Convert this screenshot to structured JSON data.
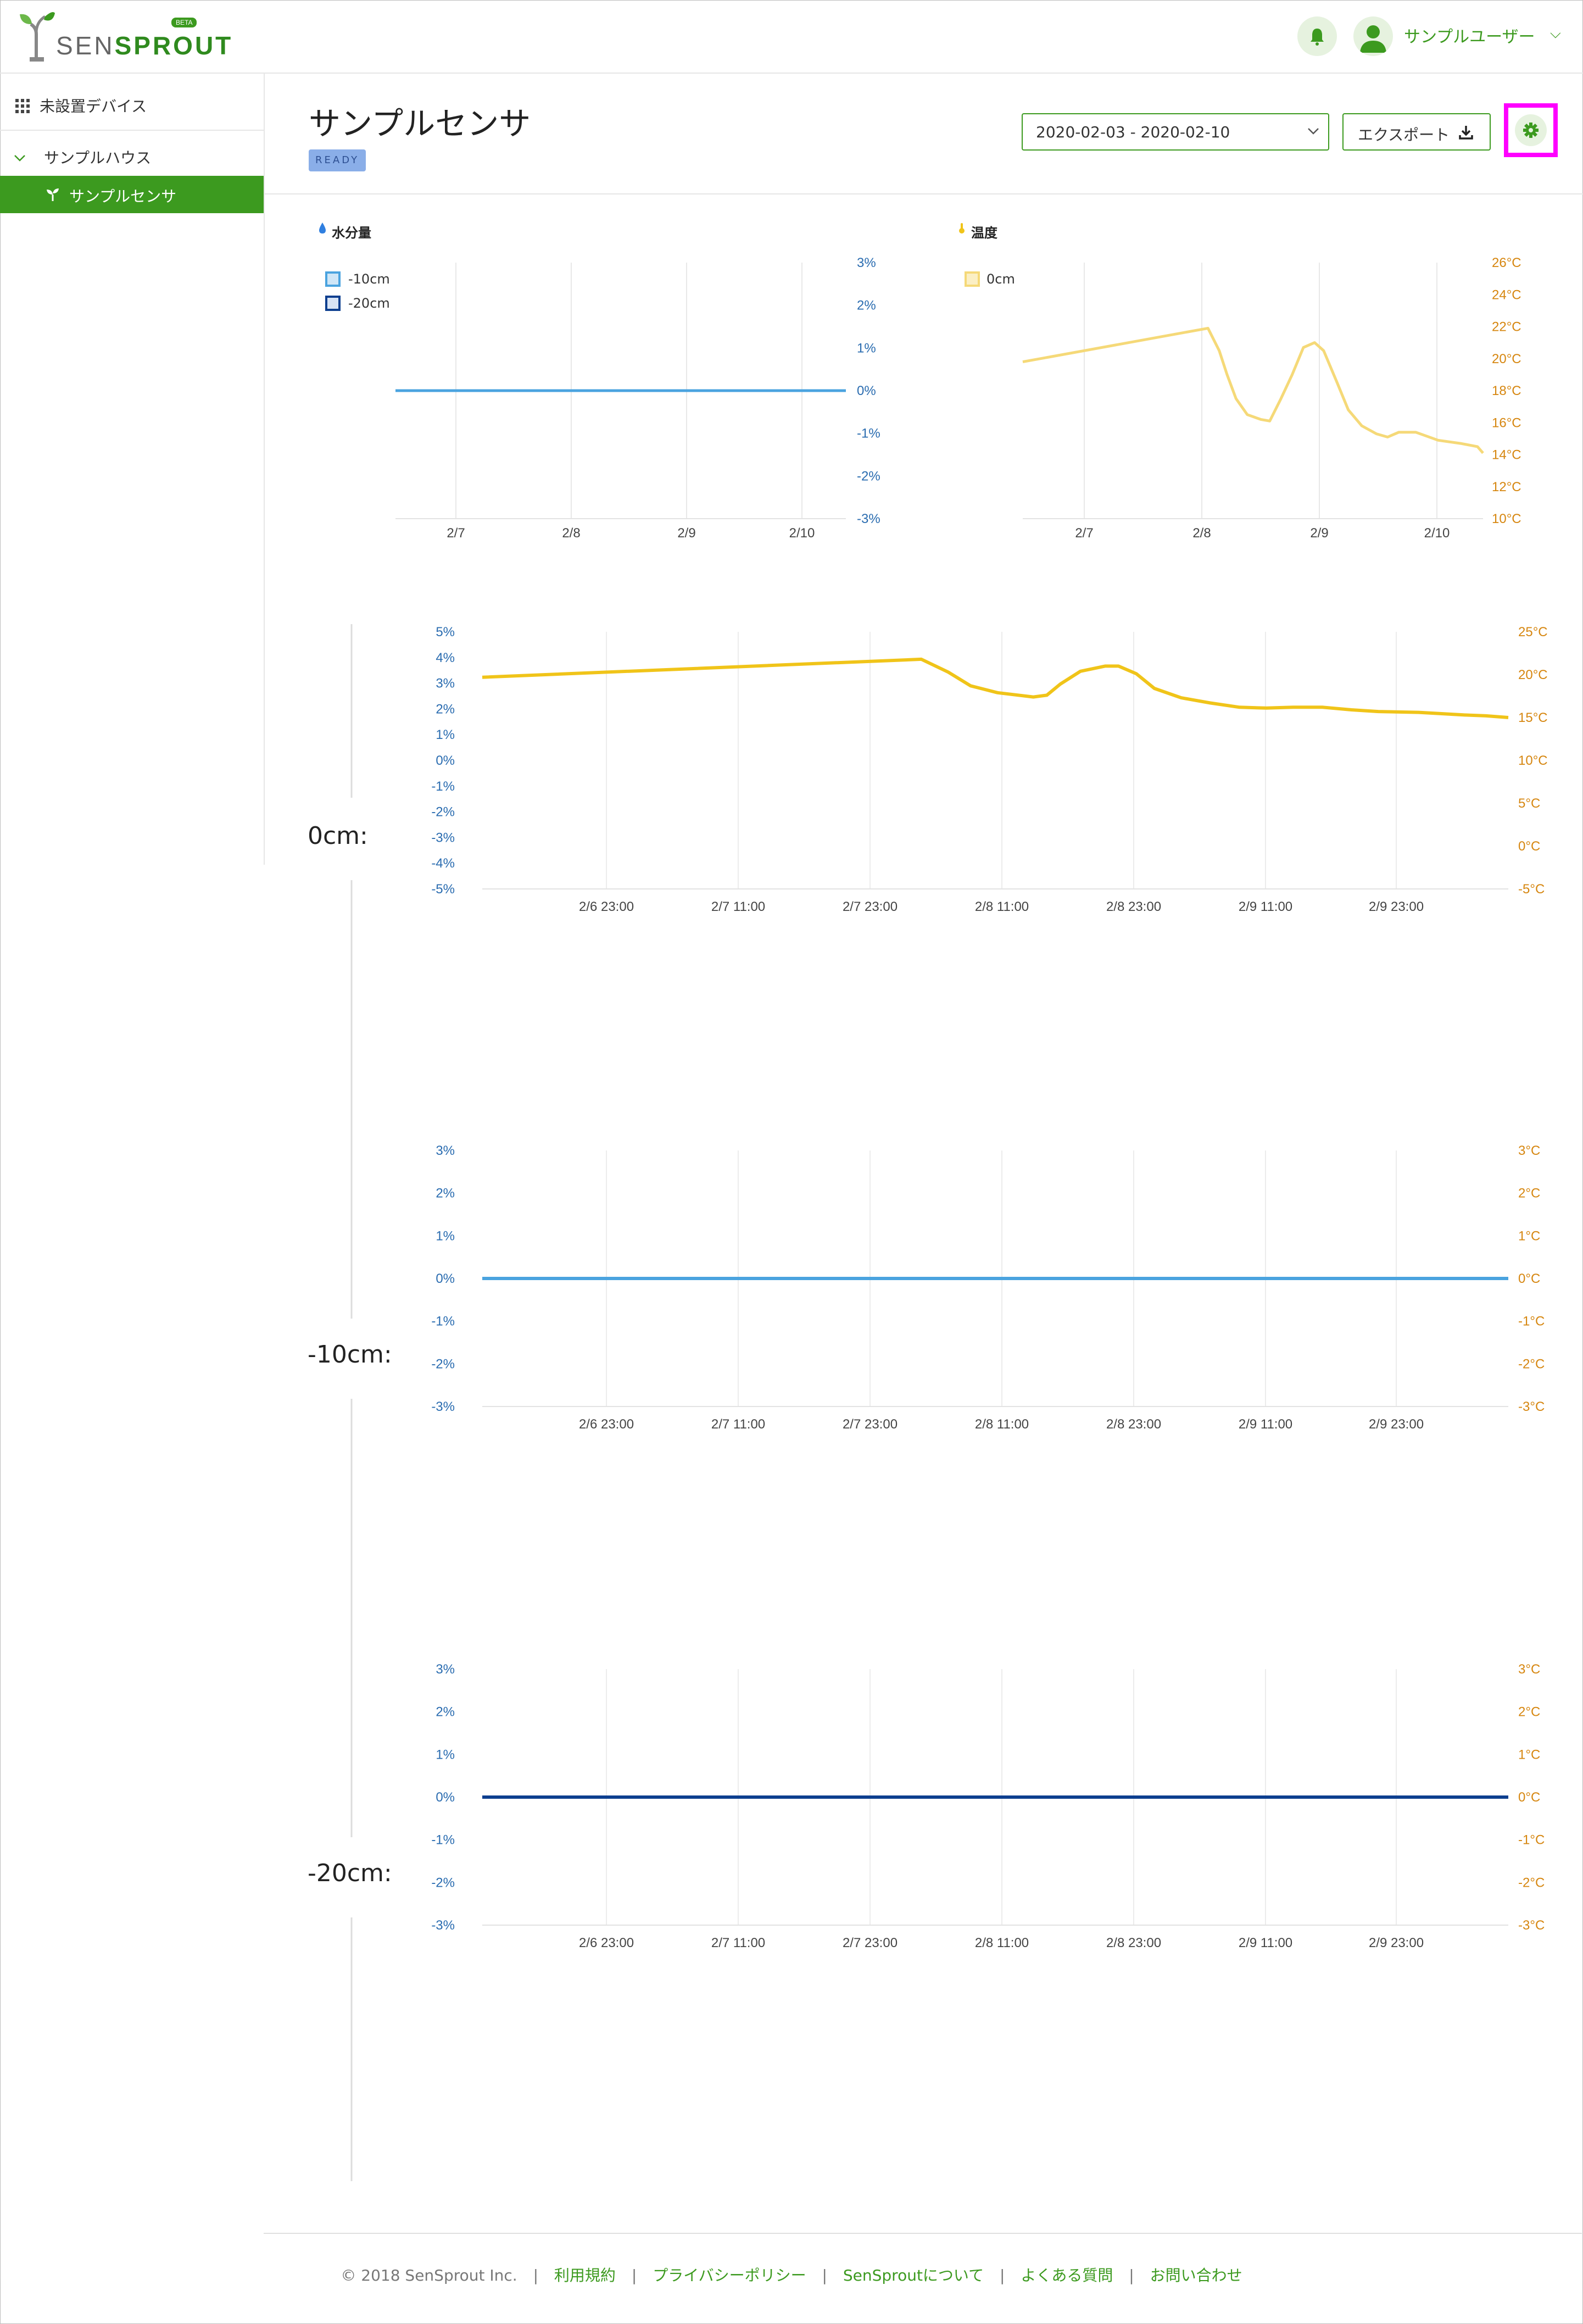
{
  "header": {
    "logo_text_left": "SEN",
    "logo_text_right": "SPROUT",
    "logo_badge": "BETA",
    "user_name": "サンプルユーザー",
    "user_chevron": "⌵",
    "icons": {
      "bell": "bell-icon",
      "avatar": "user-icon",
      "leaf": "leaf-icon"
    }
  },
  "sidebar": {
    "unassigned": "未設置デバイス",
    "group": "サンプルハウス",
    "selected_sensor": "サンプルセンサ"
  },
  "page": {
    "title": "サンプルセンサ",
    "status_badge": "READY",
    "date_range": "2020-02-03 - 2020-02-10",
    "export_label": "エクスポート",
    "accent_color": "#3c9a1f"
  },
  "chart_data": [
    {
      "type": "line",
      "title": "水分量",
      "legend": [
        "-10cm",
        "-20cm"
      ],
      "categories": [
        "2/7",
        "2/8",
        "2/9",
        "2/10"
      ],
      "y_ticks": [
        "3%",
        "2%",
        "1%",
        "0%",
        "-1%",
        "-2%",
        "-3%"
      ],
      "ylim": [
        -3,
        3
      ],
      "series": [
        {
          "name": "-10cm",
          "color": "#4aa3df",
          "x": [
            6.35,
            10.35
          ],
          "y": [
            0,
            0
          ]
        }
      ]
    },
    {
      "type": "line",
      "title": "温度",
      "legend": [
        "0cm"
      ],
      "categories": [
        "2/7",
        "2/8",
        "2/9",
        "2/10"
      ],
      "y_ticks": [
        "26°C",
        "24°C",
        "22°C",
        "20°C",
        "18°C",
        "16°C",
        "14°C",
        "12°C",
        "10°C"
      ],
      "ylim": [
        10,
        26
      ],
      "series": [
        {
          "name": "0cm",
          "color": "#f5d978",
          "x": [
            6.3,
            7.95,
            8.05,
            8.12,
            8.2,
            8.3,
            8.42,
            8.5,
            8.6,
            8.7,
            8.8,
            8.9,
            8.98,
            9.1,
            9.2,
            9.32,
            9.45,
            9.55,
            9.65,
            9.8,
            10.0,
            10.2,
            10.35,
            10.4
          ],
          "y": [
            19.8,
            21.9,
            20.5,
            19.0,
            17.5,
            16.5,
            16.2,
            16.1,
            17.5,
            19.0,
            20.7,
            21.0,
            20.5,
            18.5,
            16.8,
            15.8,
            15.3,
            15.1,
            15.4,
            15.4,
            14.9,
            14.7,
            14.5,
            14.1
          ]
        }
      ]
    },
    {
      "type": "line",
      "depth_label": "0cm:",
      "x_ticks": [
        "2/6 23:00",
        "2/7 11:00",
        "2/7 23:00",
        "2/8 11:00",
        "2/8 23:00",
        "2/9 11:00",
        "2/9 23:00"
      ],
      "y_left_ticks": [
        "5%",
        "4%",
        "3%",
        "2%",
        "1%",
        "0%",
        "-1%",
        "-2%",
        "-3%",
        "-4%",
        "-5%"
      ],
      "y_right_ticks": [
        "25°C",
        "20°C",
        "15°C",
        "10°C",
        "5°C",
        "0°C",
        "-5°C"
      ],
      "ylim_left": [
        -5,
        5
      ],
      "ylim_right": [
        -5,
        25
      ],
      "series": [
        {
          "name": "0cm",
          "axis": "right",
          "color": "#f0c419",
          "x": [
            6.0,
            7.96,
            8.08,
            8.18,
            8.3,
            8.46,
            8.52,
            8.58,
            8.67,
            8.78,
            8.84,
            8.92,
            9.0,
            9.12,
            9.25,
            9.38,
            9.5,
            9.62,
            9.75,
            9.88,
            10.0,
            10.18,
            10.38,
            10.48,
            10.58
          ],
          "y": [
            19.7,
            21.8,
            20.3,
            18.7,
            17.9,
            17.4,
            17.6,
            18.9,
            20.4,
            21.0,
            21.0,
            20.1,
            18.4,
            17.3,
            16.7,
            16.2,
            16.1,
            16.2,
            16.2,
            15.9,
            15.7,
            15.6,
            15.3,
            15.2,
            15.0
          ]
        }
      ]
    },
    {
      "type": "line",
      "depth_label": "-10cm:",
      "x_ticks": [
        "2/6 23:00",
        "2/7 11:00",
        "2/7 23:00",
        "2/8 11:00",
        "2/8 23:00",
        "2/9 11:00",
        "2/9 23:00"
      ],
      "y_left_ticks": [
        "3%",
        "2%",
        "1%",
        "0%",
        "-1%",
        "-2%",
        "-3%"
      ],
      "y_right_ticks": [
        "3°C",
        "2°C",
        "1°C",
        "0°C",
        "-1°C",
        "-2°C",
        "-3°C"
      ],
      "ylim_left": [
        -3,
        3
      ],
      "ylim_right": [
        -3,
        3
      ],
      "series": [
        {
          "name": "-10cm",
          "axis": "left",
          "color": "#4aa3df",
          "x": [
            6.0,
            10.58
          ],
          "y": [
            0,
            0
          ]
        }
      ]
    },
    {
      "type": "line",
      "depth_label": "-20cm:",
      "x_ticks": [
        "2/6 23:00",
        "2/7 11:00",
        "2/7 23:00",
        "2/8 11:00",
        "2/8 23:00",
        "2/9 11:00",
        "2/9 23:00"
      ],
      "y_left_ticks": [
        "3%",
        "2%",
        "1%",
        "0%",
        "-1%",
        "-2%",
        "-3%"
      ],
      "y_right_ticks": [
        "3°C",
        "2°C",
        "1°C",
        "0°C",
        "-1°C",
        "-2°C",
        "-3°C"
      ],
      "ylim_left": [
        -3,
        3
      ],
      "ylim_right": [
        -3,
        3
      ],
      "series": [
        {
          "name": "-20cm",
          "axis": "left",
          "color": "#0d3f8f",
          "x": [
            6.0,
            10.58
          ],
          "y": [
            0,
            0
          ]
        }
      ]
    }
  ],
  "footer": {
    "copyright": "© 2018 SenSprout Inc.",
    "separator": "|",
    "links": [
      "利用規約",
      "プライバシーポリシー",
      "SenSproutについて",
      "よくある質問",
      "お問い合わせ"
    ]
  }
}
